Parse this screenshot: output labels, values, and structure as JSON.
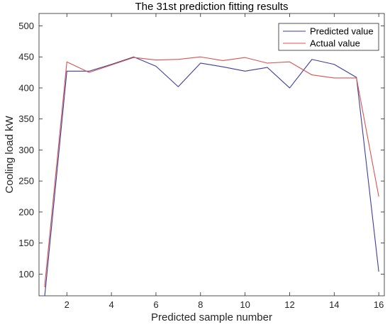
{
  "chart_data": {
    "type": "line",
    "title": "The 31st prediction fitting results",
    "xlabel": "Predicted sample number",
    "ylabel": "Cooling load kW",
    "xlim": [
      0.75,
      16.25
    ],
    "ylim": [
      65,
      520
    ],
    "xticks": [
      2,
      4,
      6,
      8,
      10,
      12,
      14,
      16
    ],
    "yticks": [
      100,
      150,
      200,
      250,
      300,
      350,
      400,
      450,
      500
    ],
    "x": [
      1,
      2,
      3,
      4,
      5,
      6,
      7,
      8,
      9,
      10,
      11,
      12,
      13,
      14,
      15,
      16
    ],
    "grid": false,
    "legend_position": "top-right",
    "series": [
      {
        "name": "Predicted value",
        "color": "#3d3d9e",
        "values": [
          62,
          427,
          427,
          438,
          450,
          435,
          402,
          440,
          434,
          427,
          433,
          400,
          446,
          438,
          417,
          104
        ]
      },
      {
        "name": "Actual value",
        "color": "#d9534f",
        "values": [
          79,
          442,
          425,
          437,
          449,
          445,
          446,
          450,
          444,
          449,
          440,
          442,
          421,
          416,
          416,
          225
        ]
      }
    ]
  }
}
